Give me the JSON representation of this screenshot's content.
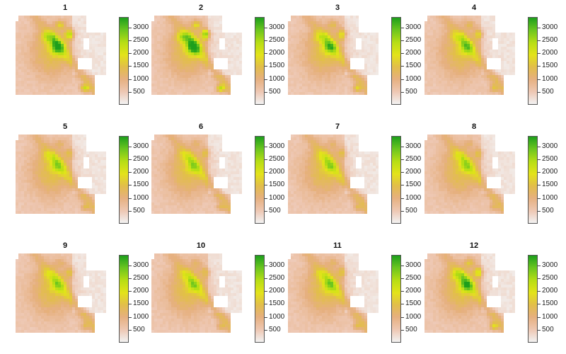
{
  "panels": [
    {
      "title": "1",
      "intensity": 1.0
    },
    {
      "title": "2",
      "intensity": 1.15
    },
    {
      "title": "3",
      "intensity": 0.7
    },
    {
      "title": "4",
      "intensity": 0.6
    },
    {
      "title": "5",
      "intensity": 0.45
    },
    {
      "title": "6",
      "intensity": 0.45
    },
    {
      "title": "7",
      "intensity": 0.42
    },
    {
      "title": "8",
      "intensity": 0.42
    },
    {
      "title": "9",
      "intensity": 0.45
    },
    {
      "title": "10",
      "intensity": 0.45
    },
    {
      "title": "11",
      "intensity": 0.5
    },
    {
      "title": "12",
      "intensity": 0.85
    }
  ],
  "legend": {
    "labels": [
      "3000",
      "2500",
      "2000",
      "1500",
      "1000",
      "500"
    ],
    "min": 0,
    "max": 3400,
    "colors": [
      "#f2f2f2",
      "#eec8b4",
      "#e6b07f",
      "#e2be4a",
      "#e3e31a",
      "#b8de15",
      "#6ac51f",
      "#1d9f1c"
    ]
  },
  "colors": {
    "background": "#ffffff",
    "nodata": "#ffffff",
    "low": "#efe2e0",
    "mid": "#e7b08a",
    "high": "#27a020"
  }
}
